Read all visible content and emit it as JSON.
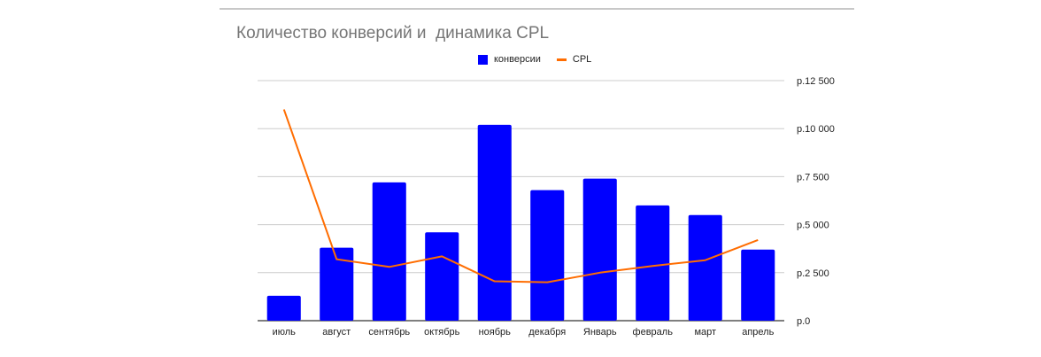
{
  "chart_data": {
    "type": "bar",
    "title": "Количество конверсий и  динамика CPL",
    "categories": [
      "июль",
      "август",
      "сентябрь",
      "октябрь",
      "ноябрь",
      "декабря",
      "Январь",
      "февраль",
      "март",
      "апрель"
    ],
    "series": [
      {
        "name": "конверсии",
        "type": "bar",
        "color": "#0000ff",
        "values": [
          1300,
          3800,
          7200,
          4600,
          10200,
          6800,
          7400,
          6000,
          5500,
          3700
        ]
      },
      {
        "name": "CPL",
        "type": "line",
        "color": "#ff6d01",
        "values": [
          11000,
          3200,
          2800,
          3350,
          2050,
          2000,
          2500,
          2850,
          3150,
          4200
        ]
      }
    ],
    "y_axis": {
      "position": "right",
      "ylim": [
        0,
        12500
      ],
      "ticks": [
        0,
        2500,
        5000,
        7500,
        10000,
        12500
      ],
      "tick_labels": [
        "р.0",
        "р.2 500",
        "р.5 000",
        "р.7 500",
        "р.10 000",
        "р.12 500"
      ]
    },
    "grid": true,
    "legend_position": "top"
  }
}
